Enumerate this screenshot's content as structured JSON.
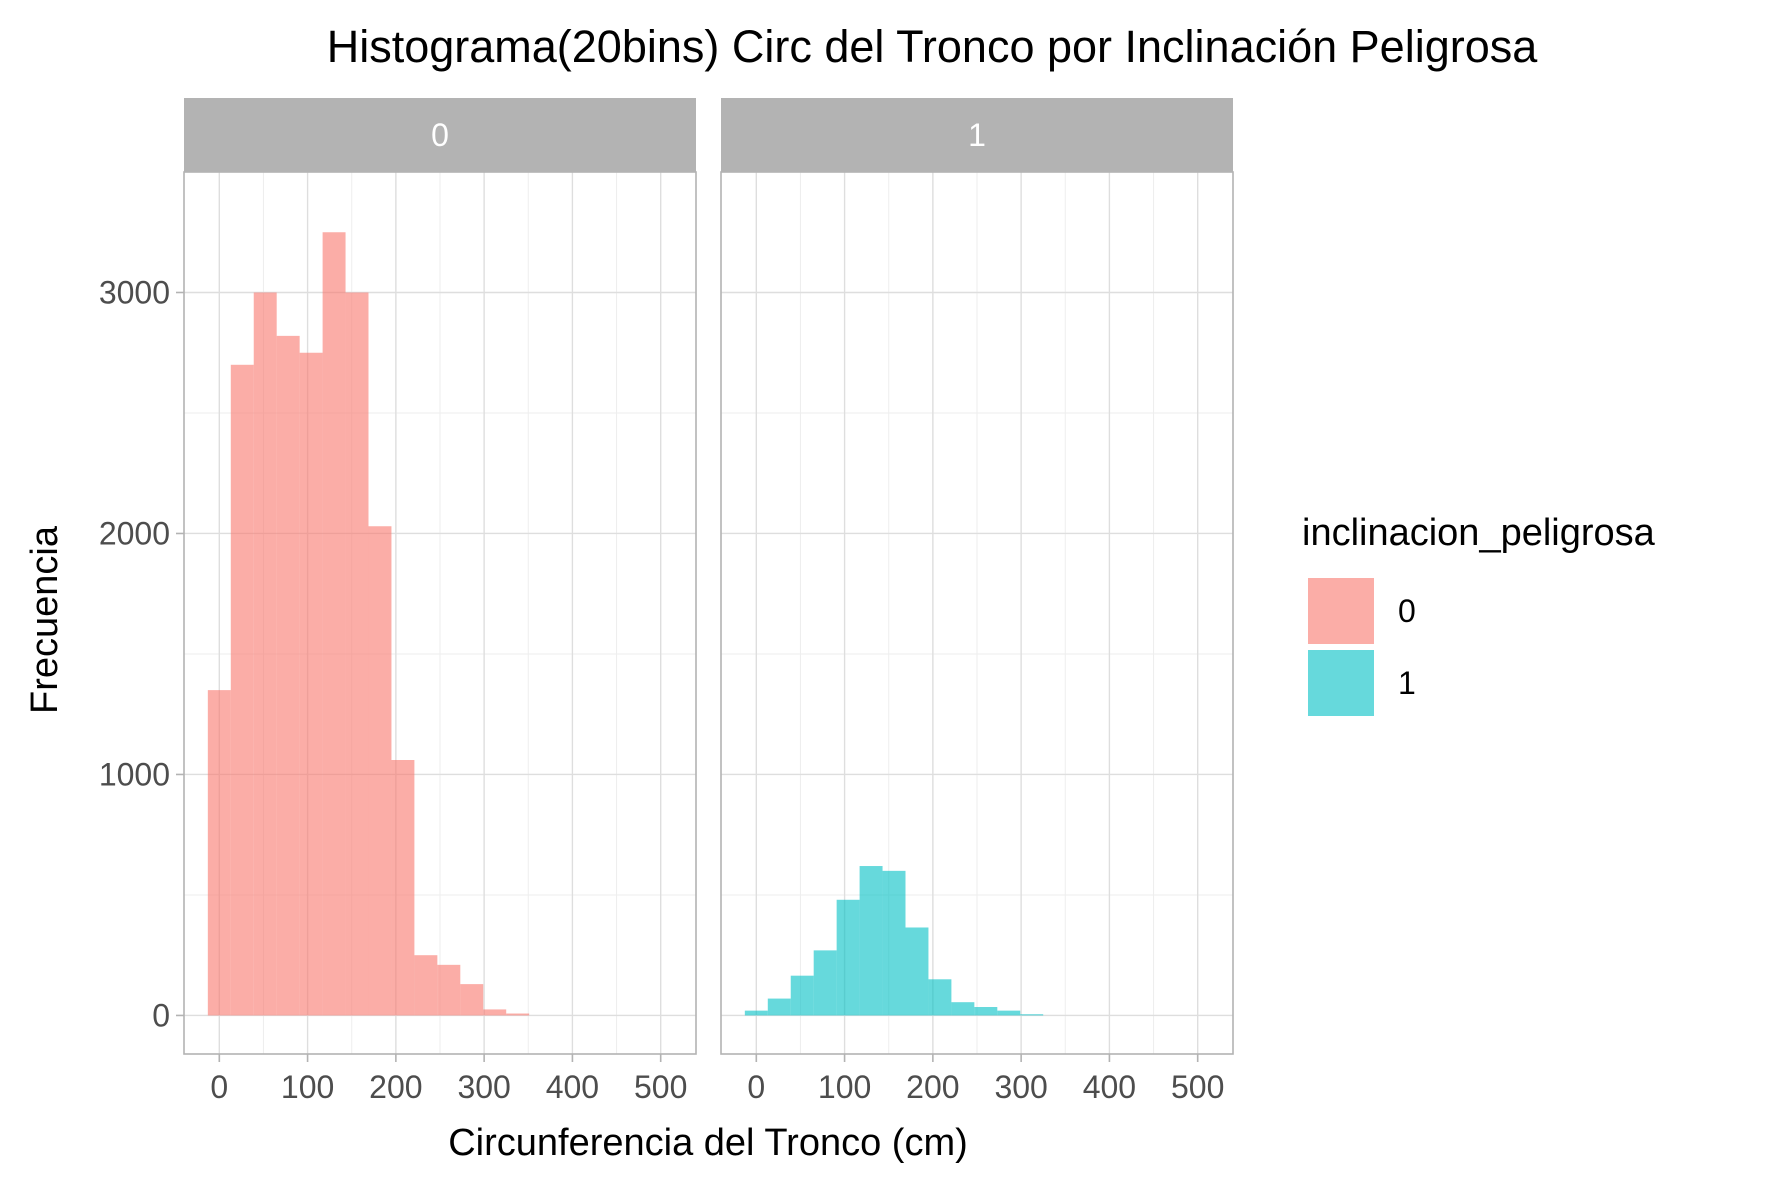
{
  "chart_data": {
    "type": "bar",
    "title": "Histograma(20bins) Circ del Tronco por Inclinación Peligrosa",
    "xlabel": "Circunferencia del Tronco (cm)",
    "ylabel": "Frecuencia",
    "xlim": [
      -40,
      540
    ],
    "ylim": [
      -160,
      3500
    ],
    "x_ticks": [
      "0",
      "100",
      "200",
      "300",
      "400",
      "500"
    ],
    "x_tick_values": [
      0,
      100,
      200,
      300,
      400,
      500
    ],
    "y_ticks": [
      "0",
      "1000",
      "2000",
      "3000"
    ],
    "y_tick_values": [
      0,
      1000,
      2000,
      3000
    ],
    "grid": true,
    "bin_width": 26,
    "legend": {
      "title": "inclinacion_peligrosa",
      "position": "right",
      "entries": [
        {
          "label": "0",
          "color": "#F8766D"
        },
        {
          "label": "1",
          "color": "#00BFC4"
        }
      ]
    },
    "panels": [
      {
        "strip": "0",
        "color": "#F8766D",
        "bin_left_edges": [
          -13,
          13,
          39,
          65,
          91,
          117,
          143,
          169,
          195,
          221,
          247,
          273,
          299,
          325
        ],
        "values": [
          1350,
          2700,
          3000,
          2820,
          2750,
          3250,
          3000,
          2030,
          1060,
          250,
          210,
          130,
          25,
          8
        ]
      },
      {
        "strip": "1",
        "color": "#00BFC4",
        "bin_left_edges": [
          -13,
          13,
          39,
          65,
          91,
          117,
          143,
          169,
          195,
          221,
          247,
          273,
          299
        ],
        "values": [
          20,
          70,
          165,
          270,
          480,
          620,
          600,
          365,
          150,
          55,
          35,
          20,
          5
        ]
      }
    ]
  }
}
